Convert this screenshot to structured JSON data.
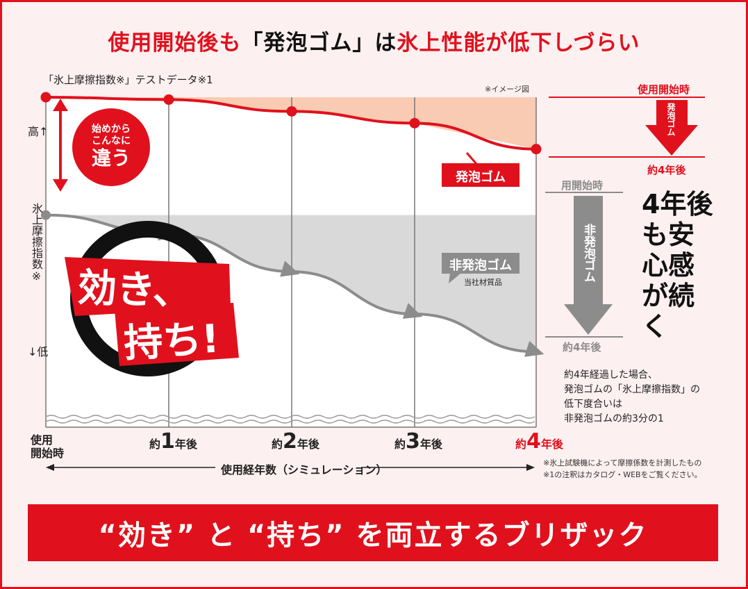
{
  "headline": {
    "p1": "使用開始後も",
    "p2": "「発泡ゴム」",
    "p3": "は",
    "p4": "氷上性能が",
    "p5": "低下しづらい"
  },
  "chart_data": {
    "type": "line",
    "title": "「氷上摩擦指数※」テストデータ※1",
    "image_note": "※イメージ図",
    "categories": [
      "使用開始時",
      "約1年後",
      "約2年後",
      "約3年後",
      "約4年後"
    ],
    "series": [
      {
        "name": "発泡ゴム",
        "color": "#e0111d",
        "values": [
          100,
          99.5,
          97,
          94.5,
          89
        ]
      },
      {
        "name": "非発泡ゴム",
        "note": "当社材質品",
        "color": "#8c8c8c",
        "values": [
          75,
          71,
          63,
          54,
          46
        ]
      }
    ],
    "ylabel": "氷上摩擦指数※",
    "y_high": "高↑",
    "y_low": "↓低",
    "xlabel": "使用経年数（シミュレーション）",
    "ylim": [
      30,
      100
    ]
  },
  "xaxis": {
    "start1": "使用",
    "start2": "開始時",
    "approx": "約",
    "y1": "1",
    "y2": "2",
    "y3": "3",
    "y4": "4",
    "suffix": "年後"
  },
  "badge": {
    "l1": "始めから",
    "l2": "こんなに",
    "l3": "違う"
  },
  "tire": {
    "l1": "効き、",
    "l2": "持ち!"
  },
  "side": {
    "red_top": "使用開始時",
    "red_arrow": "発泡ゴム",
    "red_bottom": "約4年後",
    "grey_top": "用開始時",
    "grey_arrow": "非発泡ゴム",
    "grey_bottom": "約4年後",
    "message": "4年後も安心感が続く"
  },
  "note": {
    "l1": "約4年経過した場合、",
    "l2": "発泡ゴムの「氷上摩擦指数」の",
    "l3": "低下度合いは",
    "l4": "非発泡ゴムの約3分の1"
  },
  "footnote": {
    "l1": "※氷上試験機によって摩擦係数を計測したもの",
    "l2": "※1の注釈はカタログ・WEBをご覧ください。"
  },
  "banner": "“効き” と “持ち” を両立するブリザック"
}
